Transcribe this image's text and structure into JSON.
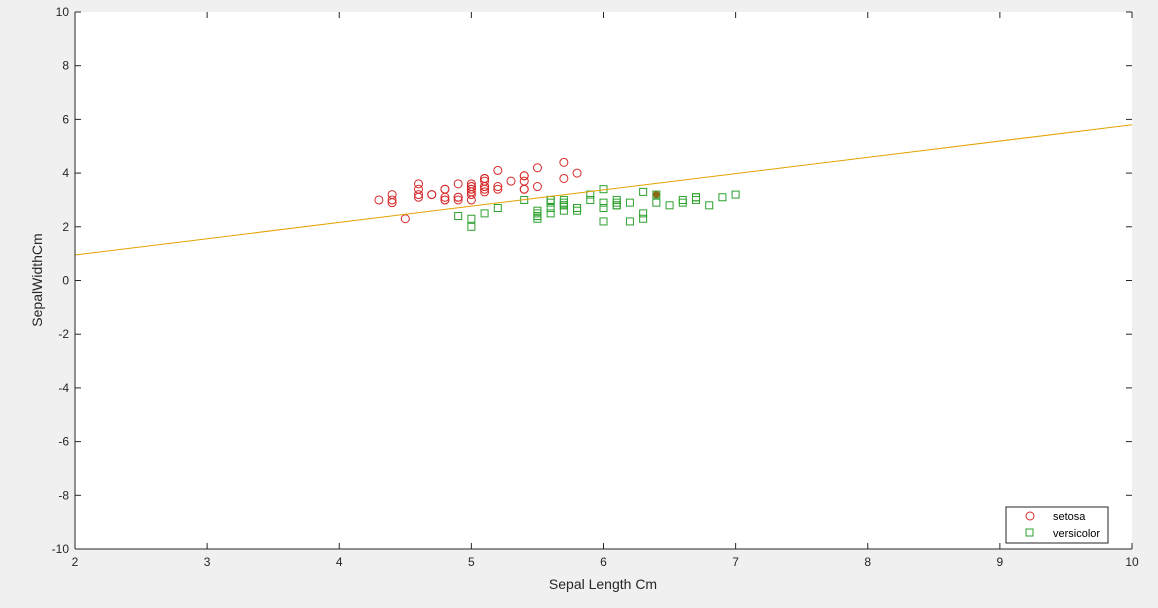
{
  "chart_data": {
    "type": "scatter",
    "title": "",
    "xlabel": "Sepal Length Cm",
    "ylabel": "SepalWidthCm",
    "xlim": [
      2,
      10
    ],
    "ylim": [
      -10,
      10
    ],
    "xticks": [
      "2",
      "3",
      "4",
      "5",
      "6",
      "7",
      "8",
      "9",
      "10"
    ],
    "yticks": [
      "-10",
      "-8",
      "-6",
      "-4",
      "-2",
      "0",
      "2",
      "4",
      "6",
      "8",
      "10"
    ],
    "grid": false,
    "legend_position": "bottom-right",
    "series": [
      {
        "name": "setosa",
        "marker": "circle",
        "color": "#d62728",
        "points": [
          [
            5.1,
            3.5
          ],
          [
            4.9,
            3.0
          ],
          [
            4.7,
            3.2
          ],
          [
            4.6,
            3.1
          ],
          [
            5.0,
            3.6
          ],
          [
            5.4,
            3.9
          ],
          [
            4.6,
            3.4
          ],
          [
            5.0,
            3.4
          ],
          [
            4.4,
            2.9
          ],
          [
            4.9,
            3.1
          ],
          [
            5.4,
            3.7
          ],
          [
            4.8,
            3.4
          ],
          [
            4.8,
            3.0
          ],
          [
            4.3,
            3.0
          ],
          [
            5.8,
            4.0
          ],
          [
            5.7,
            4.4
          ],
          [
            5.4,
            3.9
          ],
          [
            5.1,
            3.5
          ],
          [
            5.7,
            3.8
          ],
          [
            5.1,
            3.8
          ],
          [
            5.4,
            3.4
          ],
          [
            5.1,
            3.7
          ],
          [
            4.6,
            3.6
          ],
          [
            5.1,
            3.3
          ],
          [
            4.8,
            3.4
          ],
          [
            5.0,
            3.0
          ],
          [
            5.0,
            3.4
          ],
          [
            5.2,
            3.5
          ],
          [
            5.2,
            3.4
          ],
          [
            4.7,
            3.2
          ],
          [
            4.8,
            3.1
          ],
          [
            5.4,
            3.4
          ],
          [
            5.2,
            4.1
          ],
          [
            5.5,
            4.2
          ],
          [
            4.9,
            3.1
          ],
          [
            5.0,
            3.2
          ],
          [
            5.5,
            3.5
          ],
          [
            4.9,
            3.6
          ],
          [
            4.4,
            3.0
          ],
          [
            5.1,
            3.4
          ],
          [
            5.0,
            3.5
          ],
          [
            4.5,
            2.3
          ],
          [
            4.4,
            3.2
          ],
          [
            5.0,
            3.5
          ],
          [
            5.1,
            3.8
          ],
          [
            4.8,
            3.0
          ],
          [
            5.1,
            3.8
          ],
          [
            4.6,
            3.2
          ],
          [
            5.3,
            3.7
          ],
          [
            5.0,
            3.3
          ]
        ]
      },
      {
        "name": "versicolor",
        "marker": "square",
        "color": "#2ca02c",
        "points": [
          [
            7.0,
            3.2
          ],
          [
            6.4,
            3.2
          ],
          [
            6.9,
            3.1
          ],
          [
            5.5,
            2.3
          ],
          [
            6.5,
            2.8
          ],
          [
            5.7,
            2.8
          ],
          [
            6.3,
            3.3
          ],
          [
            4.9,
            2.4
          ],
          [
            6.6,
            2.9
          ],
          [
            5.2,
            2.7
          ],
          [
            5.0,
            2.0
          ],
          [
            5.9,
            3.0
          ],
          [
            6.0,
            2.2
          ],
          [
            6.1,
            2.9
          ],
          [
            5.6,
            2.9
          ],
          [
            6.7,
            3.1
          ],
          [
            5.6,
            3.0
          ],
          [
            5.8,
            2.7
          ],
          [
            6.2,
            2.2
          ],
          [
            5.6,
            2.5
          ],
          [
            5.9,
            3.2
          ],
          [
            6.1,
            2.8
          ],
          [
            6.3,
            2.5
          ],
          [
            6.1,
            2.8
          ],
          [
            6.4,
            2.9
          ],
          [
            6.6,
            3.0
          ],
          [
            6.8,
            2.8
          ],
          [
            6.7,
            3.0
          ],
          [
            6.0,
            2.9
          ],
          [
            5.7,
            2.6
          ],
          [
            5.5,
            2.4
          ],
          [
            5.5,
            2.4
          ],
          [
            5.8,
            2.7
          ],
          [
            6.0,
            2.7
          ],
          [
            5.4,
            3.0
          ],
          [
            6.0,
            3.4
          ],
          [
            6.7,
            3.1
          ],
          [
            6.3,
            2.3
          ],
          [
            5.6,
            3.0
          ],
          [
            5.5,
            2.5
          ],
          [
            5.5,
            2.6
          ],
          [
            6.1,
            3.0
          ],
          [
            5.8,
            2.6
          ],
          [
            5.0,
            2.3
          ],
          [
            5.6,
            2.7
          ],
          [
            5.7,
            3.0
          ],
          [
            5.7,
            2.9
          ],
          [
            6.2,
            2.9
          ],
          [
            5.1,
            2.5
          ],
          [
            5.7,
            2.8
          ]
        ]
      }
    ],
    "highlight_point": {
      "x": 6.4,
      "y": 3.2,
      "color": "#8b6914"
    },
    "decision_line": {
      "x": [
        2,
        10
      ],
      "y": [
        0.95,
        5.8
      ],
      "color": "#e6a100"
    }
  }
}
